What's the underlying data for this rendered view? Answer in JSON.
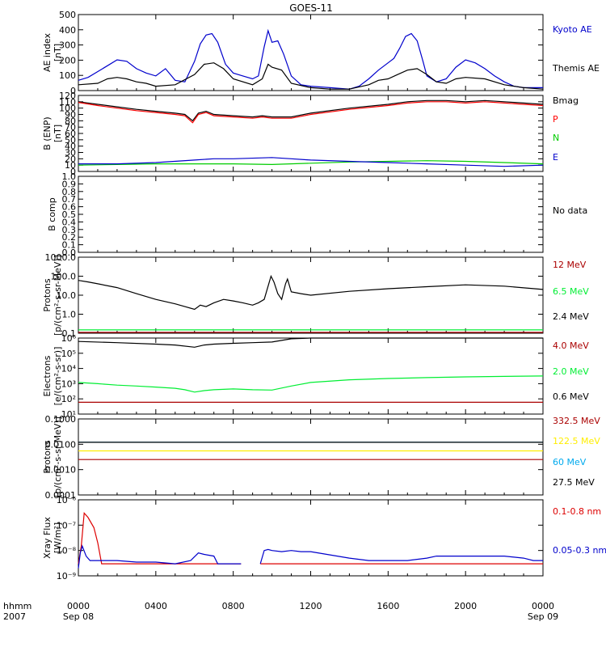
{
  "title": "GOES-11",
  "bottom": {
    "corner_top": "hhmm",
    "corner_bottom": "2007",
    "date_start": "Sep 08",
    "date_end": "Sep 09"
  },
  "chart_data": [
    {
      "type": "line",
      "ylabel": "AE index",
      "yunit": "[nT]",
      "ylim": [
        0,
        520
      ],
      "yticks": [
        "0",
        "100",
        "200",
        "300",
        "400",
        "500"
      ],
      "xlim": [
        0,
        24
      ],
      "xticks": [
        "0000",
        "0400",
        "0800",
        "1200",
        "1600",
        "2000",
        "0000"
      ],
      "legend": [
        {
          "name": "Kyoto AE",
          "color": "#0000cc"
        },
        {
          "name": "Themis AE",
          "color": "#000000"
        }
      ],
      "series": [
        {
          "name": "Kyoto AE",
          "color": "#0000cc",
          "x": [
            0,
            0.5,
            1,
            1.5,
            2,
            2.5,
            3,
            3.5,
            4,
            4.5,
            5,
            5.5,
            6,
            6.3,
            6.6,
            6.9,
            7.2,
            7.6,
            8,
            8.5,
            9,
            9.3,
            9.6,
            9.8,
            10,
            10.3,
            10.6,
            11,
            11.5,
            12,
            13,
            14,
            14.5,
            15,
            15.5,
            16,
            16.3,
            16.6,
            16.9,
            17.2,
            17.5,
            17.8,
            18,
            18.5,
            19,
            19.5,
            20,
            20.5,
            21,
            21.5,
            22,
            22.5,
            23,
            24
          ],
          "y": [
            70,
            90,
            130,
            170,
            210,
            200,
            150,
            120,
            100,
            150,
            70,
            60,
            200,
            320,
            380,
            390,
            330,
            180,
            120,
            100,
            80,
            100,
            300,
            410,
            330,
            340,
            250,
            100,
            40,
            30,
            20,
            10,
            30,
            80,
            140,
            190,
            220,
            290,
            370,
            390,
            340,
            200,
            100,
            60,
            80,
            160,
            210,
            190,
            150,
            100,
            60,
            30,
            20,
            20
          ]
        },
        {
          "name": "Themis AE",
          "color": "#000000",
          "x": [
            0,
            1,
            1.5,
            2,
            2.5,
            3,
            3.5,
            4,
            5,
            6,
            6.5,
            7,
            7.5,
            8,
            9,
            9.5,
            9.8,
            10,
            10.5,
            11,
            12,
            13,
            14,
            15,
            15.5,
            16,
            16.5,
            17,
            17.5,
            18,
            18.5,
            19,
            19.5,
            20,
            21,
            22,
            23,
            24
          ],
          "y": [
            40,
            50,
            80,
            90,
            80,
            60,
            50,
            30,
            40,
            110,
            180,
            190,
            150,
            80,
            40,
            80,
            180,
            160,
            140,
            50,
            20,
            10,
            10,
            40,
            70,
            80,
            110,
            140,
            150,
            110,
            60,
            50,
            80,
            90,
            80,
            40,
            20,
            10
          ]
        }
      ]
    },
    {
      "type": "line",
      "ylabel": "B (ENP)",
      "yunit": "[nT]",
      "ylim": [
        0,
        120
      ],
      "yticks": [
        "0",
        "10",
        "20",
        "30",
        "40",
        "50",
        "60",
        "70",
        "80",
        "90",
        "100",
        "110",
        "120"
      ],
      "xlim": [
        0,
        24
      ],
      "legend": [
        {
          "name": "Bmag",
          "color": "#000000"
        },
        {
          "name": "P",
          "color": "#ff0000"
        },
        {
          "name": "N",
          "color": "#00cc00"
        },
        {
          "name": "E",
          "color": "#0000cc"
        }
      ],
      "series": [
        {
          "name": "Bmag",
          "color": "#000000",
          "x": [
            0,
            1,
            2,
            3,
            4,
            5,
            5.5,
            5.9,
            6.2,
            6.6,
            7,
            8,
            9,
            9.5,
            10,
            11,
            12,
            14,
            16,
            17,
            18,
            19,
            20,
            21,
            22,
            23,
            24
          ],
          "y": [
            110,
            106,
            102,
            98,
            95,
            92,
            90,
            80,
            92,
            95,
            90,
            88,
            86,
            88,
            86,
            86,
            92,
            100,
            106,
            110,
            112,
            112,
            110,
            112,
            110,
            108,
            106
          ]
        },
        {
          "name": "P",
          "color": "#ff0000",
          "x": [
            0,
            1,
            2,
            3,
            4,
            5,
            5.5,
            5.9,
            6.2,
            6.6,
            7,
            8,
            9,
            9.5,
            10,
            11,
            12,
            14,
            16,
            17,
            18,
            19,
            20,
            21,
            22,
            23,
            24
          ],
          "y": [
            109,
            104,
            100,
            96,
            93,
            90,
            88,
            77,
            90,
            93,
            88,
            86,
            84,
            86,
            84,
            84,
            90,
            98,
            104,
            108,
            110,
            110,
            108,
            110,
            108,
            106,
            104
          ]
        },
        {
          "name": "N",
          "color": "#00cc00",
          "x": [
            0,
            2,
            4,
            6,
            8,
            10,
            12,
            14,
            16,
            18,
            20,
            22,
            24
          ],
          "y": [
            10,
            11,
            12,
            12,
            12,
            11,
            13,
            15,
            16,
            17,
            16,
            14,
            12
          ]
        },
        {
          "name": "E",
          "color": "#0000cc",
          "x": [
            0,
            2,
            4,
            6,
            7,
            8,
            10,
            11,
            12,
            14,
            16,
            18,
            20,
            22,
            24
          ],
          "y": [
            12,
            12,
            14,
            18,
            20,
            20,
            22,
            20,
            18,
            16,
            14,
            12,
            10,
            8,
            10
          ]
        }
      ]
    },
    {
      "type": "line",
      "ylabel": "B comp",
      "ylim": [
        0,
        1
      ],
      "yticks": [
        "0.0",
        "0.1",
        "0.2",
        "0.3",
        "0.4",
        "0.5",
        "0.6",
        "0.7",
        "0.8",
        "0.9",
        "1.0"
      ],
      "xlim": [
        0,
        24
      ],
      "legend": [
        {
          "name": "No data",
          "color": "#000000"
        }
      ],
      "series": []
    },
    {
      "type": "line",
      "ylabel": "Protons",
      "yunit": "[p/(cm²-s-sr-MeV)]",
      "yscale": "log",
      "ylim": [
        0.1,
        1000
      ],
      "yticks": [
        "0.1",
        "1.0",
        "10.0",
        "100.0",
        "1000.0"
      ],
      "xlim": [
        0,
        24
      ],
      "legend": [
        {
          "name": "12 MeV",
          "color": "#aa0000"
        },
        {
          "name": "6.5 MeV",
          "color": "#00ee33"
        },
        {
          "name": "2.4 MeV",
          "color": "#000000"
        }
      ],
      "series": [
        {
          "name": "2.4 MeV",
          "color": "#000000",
          "x": [
            0,
            0.5,
            1,
            2,
            3,
            4,
            5,
            5.5,
            6,
            6.3,
            6.6,
            7,
            7.5,
            8,
            8.5,
            9,
            9.3,
            9.6,
            9.8,
            9.95,
            10.1,
            10.3,
            10.5,
            10.7,
            10.8,
            11,
            11.5,
            12,
            14,
            16,
            18,
            20,
            22,
            24
          ],
          "y": [
            60,
            50,
            40,
            25,
            12,
            6,
            3.5,
            2.5,
            1.8,
            3,
            2.5,
            4,
            6,
            5,
            4,
            3,
            4,
            6,
            30,
            100,
            50,
            12,
            6,
            40,
            70,
            15,
            12,
            10,
            16,
            22,
            28,
            35,
            30,
            20
          ]
        },
        {
          "name": "6.5 MeV",
          "color": "#00ee33",
          "x": [
            0,
            24
          ],
          "y": [
            0.15,
            0.15
          ]
        },
        {
          "name": "12 MeV",
          "color": "#aa0000",
          "x": [
            0,
            24
          ],
          "y": [
            0.11,
            0.11
          ]
        }
      ]
    },
    {
      "type": "line",
      "ylabel": "Electrons",
      "yunit": "[e/(cm²-s-sr)]",
      "yscale": "log",
      "ylim": [
        10,
        1000000
      ],
      "yticks": [
        "10¹",
        "10²",
        "10³",
        "10⁴",
        "10⁵",
        "10⁶"
      ],
      "xlim": [
        0,
        24
      ],
      "legend": [
        {
          "name": "4.0 MeV",
          "color": "#aa0000"
        },
        {
          "name": "2.0 MeV",
          "color": "#00ee33"
        },
        {
          "name": "0.6 MeV",
          "color": "#000000"
        }
      ],
      "series": [
        {
          "name": "0.6 MeV",
          "color": "#000000",
          "x": [
            0,
            2,
            4,
            5,
            6,
            6.5,
            7,
            8,
            9,
            10,
            10.5,
            11,
            12,
            14,
            16,
            18,
            20,
            22,
            24
          ],
          "y": [
            600000,
            500000,
            400000,
            350000,
            250000,
            350000,
            400000,
            450000,
            500000,
            550000,
            700000,
            900000,
            1000000,
            1000000,
            1000000,
            1000000,
            1000000,
            1000000,
            1000000
          ]
        },
        {
          "name": "2.0 MeV",
          "color": "#00ee33",
          "x": [
            0,
            1,
            2,
            3,
            4,
            5,
            5.5,
            6,
            6.5,
            7,
            8,
            9,
            10,
            11,
            12,
            14,
            16,
            18,
            20,
            22,
            24
          ],
          "y": [
            1200,
            1000,
            800,
            700,
            600,
            500,
            400,
            280,
            350,
            400,
            450,
            400,
            380,
            700,
            1200,
            1800,
            2200,
            2500,
            2800,
            3000,
            3200
          ]
        },
        {
          "name": "4.0 MeV",
          "color": "#aa0000",
          "x": [
            0,
            24
          ],
          "y": [
            60,
            60
          ]
        }
      ]
    },
    {
      "type": "line",
      "ylabel": "Protons",
      "yunit": "[p/(cm²-s-sr-MeV)]",
      "yscale": "log",
      "ylim": [
        0.0001,
        0.1
      ],
      "yticks": [
        "0.0001",
        "0.0010",
        "0.0100",
        "0.1000"
      ],
      "xlim": [
        0,
        24
      ],
      "legend": [
        {
          "name": "332.5 MeV",
          "color": "#aa0000"
        },
        {
          "name": "122.5 MeV",
          "color": "#ffee00"
        },
        {
          "name": "60 MeV",
          "color": "#00aaee"
        },
        {
          "name": "27.5 MeV",
          "color": "#000000"
        }
      ],
      "series": [
        {
          "name": "332.5 MeV",
          "color": "#aa0000",
          "x": [
            0,
            24
          ],
          "y": [
            0.0025,
            0.0025
          ]
        },
        {
          "name": "122.5 MeV",
          "color": "#ffee00",
          "x": [
            0,
            24
          ],
          "y": [
            0.0055,
            0.0055
          ]
        },
        {
          "name": "60 MeV",
          "color": "#00aaee",
          "x": [
            0,
            24
          ],
          "y": [
            0.012,
            0.012
          ]
        },
        {
          "name": "27.5 MeV",
          "color": "#000000",
          "x": [
            0,
            24
          ],
          "y": [
            0.012,
            0.012
          ]
        }
      ]
    },
    {
      "type": "line",
      "ylabel": "Xray Flux",
      "yunit": "[W/m²]",
      "yscale": "log",
      "ylim": [
        1e-09,
        1e-06
      ],
      "yticks": [
        "10⁻⁹",
        "10⁻⁸",
        "10⁻⁷",
        "10⁻⁶"
      ],
      "xlim": [
        0,
        24
      ],
      "legend": [
        {
          "name": "0.1-0.8 nm",
          "color": "#dd0000"
        },
        {
          "name": "0.05-0.3 nm",
          "color": "#0000cc"
        }
      ],
      "series": [
        {
          "name": "0.1-0.8 nm",
          "color": "#dd0000",
          "x": [
            0,
            0.15,
            0.3,
            0.5,
            0.8,
            1,
            1.2,
            2,
            4,
            6,
            7,
            8,
            8.4,
            null,
            9.4,
            9.6,
            12,
            16,
            20,
            24
          ],
          "y": [
            3e-09,
            1.5e-08,
            3e-07,
            2e-07,
            8e-08,
            2e-08,
            3e-09,
            3e-09,
            3e-09,
            3e-09,
            3e-09,
            3e-09,
            3e-09,
            null,
            3e-09,
            3e-09,
            3e-09,
            3e-09,
            3e-09,
            3e-09
          ]
        },
        {
          "name": "0.05-0.3 nm",
          "color": "#0000cc",
          "x": [
            0,
            0.1,
            0.2,
            0.4,
            0.6,
            1,
            2,
            3,
            4,
            5,
            5.8,
            6.2,
            6.5,
            7,
            7.2,
            7.6,
            8,
            8.4,
            null,
            9.4,
            9.6,
            9.8,
            10,
            10.5,
            11,
            11.5,
            12,
            14,
            15,
            16,
            17,
            18,
            18.5,
            19,
            20,
            21,
            22,
            23,
            23.5,
            24
          ],
          "y": [
            2e-09,
            8e-09,
            1.5e-08,
            6e-09,
            4e-09,
            4e-09,
            4e-09,
            3.5e-09,
            3.5e-09,
            3e-09,
            4e-09,
            8e-09,
            7e-09,
            6e-09,
            3e-09,
            3e-09,
            3e-09,
            3e-09,
            null,
            3e-09,
            1e-08,
            1.1e-08,
            1e-08,
            9e-09,
            1e-08,
            9e-09,
            9e-09,
            5e-09,
            4e-09,
            4e-09,
            4e-09,
            5e-09,
            6e-09,
            6e-09,
            6e-09,
            6e-09,
            6e-09,
            5e-09,
            4e-09,
            4e-09
          ]
        }
      ]
    }
  ]
}
